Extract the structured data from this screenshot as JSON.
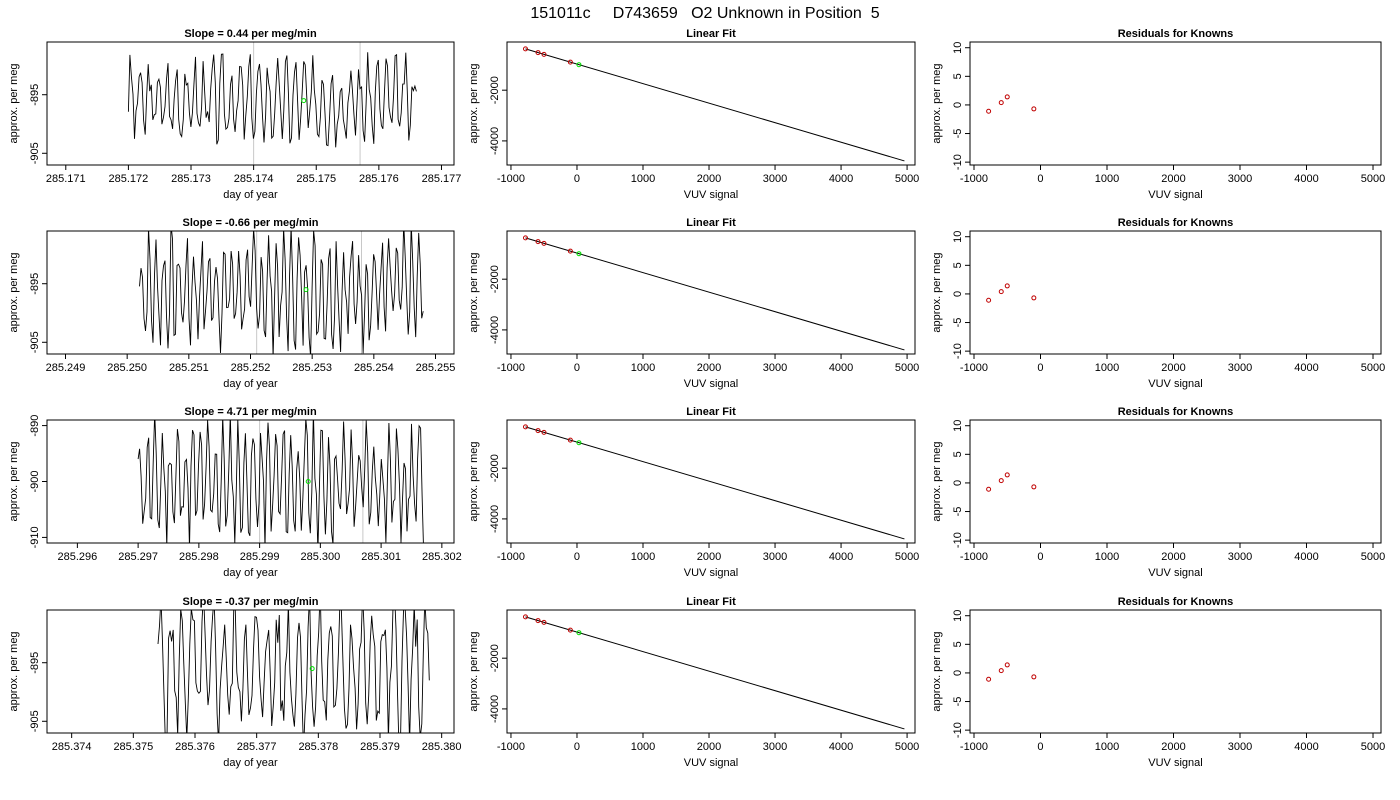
{
  "page_title": "151011c     D743659   O2 Unknown in Position  5",
  "colors": {
    "known": "#c00000",
    "unknown": "#00e000",
    "trace": "#000000",
    "marker_line": "#c8c8c8"
  },
  "chart_data": [
    {
      "type": "line",
      "row": 0,
      "col": 0,
      "title": "Slope =  0.44  per meg/min",
      "xlabel": "day of year",
      "ylabel": "approx. per meg",
      "xlim": [
        285.1707,
        285.1772
      ],
      "ylim": [
        -907,
        -886
      ],
      "xticks": [
        "285.171",
        "285.172",
        "285.173",
        "285.174",
        "285.175",
        "285.176",
        "285.177"
      ],
      "yticks": [
        "-895",
        "-905"
      ],
      "trace": {
        "x_start": 285.172,
        "x_end": 285.1766,
        "n": 190,
        "center": -896,
        "amplitude": 7.5,
        "period": 6,
        "seed": 3
      },
      "vlines": [
        285.174,
        285.1757
      ],
      "unknown_point": {
        "x": 285.1748,
        "y": -896
      }
    },
    {
      "type": "scatter",
      "row": 0,
      "col": 1,
      "title": "Linear Fit",
      "xlabel": "VUV signal",
      "ylabel": "approx. per meg",
      "xlim": [
        -1060,
        5120
      ],
      "ylim": [
        -4950,
        -100
      ],
      "xticks": [
        "-1000",
        "0",
        "1000",
        "2000",
        "3000",
        "4000",
        "5000"
      ],
      "yticks": [
        "-2000",
        "-4000"
      ],
      "line": {
        "x": [
          -780,
          4960
        ],
        "y": [
          -370,
          -4790
        ]
      },
      "known_points": {
        "x": [
          -780,
          -590,
          -500,
          -100
        ],
        "y": [
          -370,
          -517,
          -587,
          -895
        ]
      },
      "unknown_point": {
        "x": 30,
        "y": -995
      }
    },
    {
      "type": "scatter",
      "row": 0,
      "col": 2,
      "title": "Residuals for Knowns",
      "xlabel": "VUV signal",
      "ylabel": "approx. per meg",
      "xlim": [
        -1060,
        5120
      ],
      "ylim": [
        -10.5,
        11
      ],
      "xticks": [
        "-1000",
        "0",
        "1000",
        "2000",
        "3000",
        "4000",
        "5000"
      ],
      "yticks": [
        "-10",
        "-5",
        "0",
        "5",
        "10"
      ],
      "known_points": {
        "x": [
          -780,
          -590,
          -500,
          -100
        ],
        "y": [
          -1.1,
          0.4,
          1.4,
          -0.7
        ]
      }
    },
    {
      "type": "line",
      "row": 1,
      "col": 0,
      "title": "Slope =  -0.66  per meg/min",
      "xlabel": "day of year",
      "ylabel": "approx. per meg",
      "xlim": [
        285.2487,
        285.2553
      ],
      "ylim": [
        -907,
        -886
      ],
      "xticks": [
        "285.249",
        "285.250",
        "285.251",
        "285.252",
        "285.253",
        "285.254",
        "285.255"
      ],
      "yticks": [
        "-895",
        "-905"
      ],
      "trace": {
        "x_start": 285.2502,
        "x_end": 285.2548,
        "n": 190,
        "center": -896,
        "amplitude": 10,
        "period": 5,
        "seed": 7
      },
      "vlines": [
        285.2521,
        285.2538
      ],
      "unknown_point": {
        "x": 285.2529,
        "y": -896
      }
    },
    {
      "type": "scatter",
      "row": 1,
      "col": 1,
      "title": "Linear Fit",
      "xlabel": "VUV signal",
      "ylabel": "approx. per meg",
      "xlim": [
        -1060,
        5120
      ],
      "ylim": [
        -4950,
        -100
      ],
      "xticks": [
        "-1000",
        "0",
        "1000",
        "2000",
        "3000",
        "4000",
        "5000"
      ],
      "yticks": [
        "-2000",
        "-4000"
      ],
      "line": {
        "x": [
          -780,
          4960
        ],
        "y": [
          -370,
          -4790
        ]
      },
      "known_points": {
        "x": [
          -780,
          -590,
          -500,
          -100
        ],
        "y": [
          -370,
          -517,
          -587,
          -895
        ]
      },
      "unknown_point": {
        "x": 30,
        "y": -995
      }
    },
    {
      "type": "scatter",
      "row": 1,
      "col": 2,
      "title": "Residuals for Knowns",
      "xlabel": "VUV signal",
      "ylabel": "approx. per meg",
      "xlim": [
        -1060,
        5120
      ],
      "ylim": [
        -10.5,
        11
      ],
      "xticks": [
        "-1000",
        "0",
        "1000",
        "2000",
        "3000",
        "4000",
        "5000"
      ],
      "yticks": [
        "-10",
        "-5",
        "0",
        "5",
        "10"
      ],
      "known_points": {
        "x": [
          -780,
          -590,
          -500,
          -100
        ],
        "y": [
          -1.1,
          0.4,
          1.4,
          -0.7
        ]
      }
    },
    {
      "type": "line",
      "row": 2,
      "col": 0,
      "title": "Slope =  4.71  per meg/min",
      "xlabel": "day of year",
      "ylabel": "approx. per meg",
      "xlim": [
        285.2955,
        285.3022
      ],
      "ylim": [
        -911,
        -889
      ],
      "xticks": [
        "285.296",
        "285.297",
        "285.298",
        "285.299",
        "285.300",
        "285.301",
        "285.302"
      ],
      "yticks": [
        "-890",
        "-900",
        "-910"
      ],
      "trace": {
        "x_start": 285.297,
        "x_end": 285.3017,
        "n": 190,
        "center": -900,
        "amplitude": 11,
        "period": 5,
        "seed": 11
      },
      "vlines": [
        285.299,
        285.3007
      ],
      "unknown_point": {
        "x": 285.2998,
        "y": -900
      }
    },
    {
      "type": "scatter",
      "row": 2,
      "col": 1,
      "title": "Linear Fit",
      "xlabel": "VUV signal",
      "ylabel": "approx. per meg",
      "xlim": [
        -1060,
        5120
      ],
      "ylim": [
        -4950,
        -100
      ],
      "xticks": [
        "-1000",
        "0",
        "1000",
        "2000",
        "3000",
        "4000",
        "5000"
      ],
      "yticks": [
        "-2000",
        "-4000"
      ],
      "line": {
        "x": [
          -780,
          4960
        ],
        "y": [
          -370,
          -4790
        ]
      },
      "known_points": {
        "x": [
          -780,
          -590,
          -500,
          -100
        ],
        "y": [
          -370,
          -517,
          -587,
          -895
        ]
      },
      "unknown_point": {
        "x": 30,
        "y": -995
      }
    },
    {
      "type": "scatter",
      "row": 2,
      "col": 2,
      "title": "Residuals for Knowns",
      "xlabel": "VUV signal",
      "ylabel": "approx. per meg",
      "xlim": [
        -1060,
        5120
      ],
      "ylim": [
        -10.5,
        11
      ],
      "xticks": [
        "-1000",
        "0",
        "1000",
        "2000",
        "3000",
        "4000",
        "5000"
      ],
      "yticks": [
        "-10",
        "-5",
        "0",
        "5",
        "10"
      ],
      "known_points": {
        "x": [
          -780,
          -590,
          -500,
          -100
        ],
        "y": [
          -1.1,
          0.4,
          1.4,
          -0.7
        ]
      }
    },
    {
      "type": "line",
      "row": 3,
      "col": 0,
      "title": "Slope =  -0.37  per meg/min",
      "xlabel": "day of year",
      "ylabel": "approx. per meg",
      "xlim": [
        285.3736,
        285.3802
      ],
      "ylim": [
        -907,
        -886
      ],
      "xticks": [
        "285.374",
        "285.375",
        "285.376",
        "285.377",
        "285.378",
        "285.379",
        "285.380"
      ],
      "yticks": [
        "-895",
        "-905"
      ],
      "trace": {
        "x_start": 285.3754,
        "x_end": 285.3798,
        "n": 180,
        "center": -896,
        "amplitude": 12,
        "period": 7,
        "seed": 5
      },
      "vlines": [],
      "unknown_point": {
        "x": 285.3779,
        "y": -896
      }
    },
    {
      "type": "scatter",
      "row": 3,
      "col": 1,
      "title": "Linear Fit",
      "xlabel": "VUV signal",
      "ylabel": "approx. per meg",
      "xlim": [
        -1060,
        5120
      ],
      "ylim": [
        -4950,
        -100
      ],
      "xticks": [
        "-1000",
        "0",
        "1000",
        "2000",
        "3000",
        "4000",
        "5000"
      ],
      "yticks": [
        "-2000",
        "-4000"
      ],
      "line": {
        "x": [
          -780,
          4960
        ],
        "y": [
          -370,
          -4790
        ]
      },
      "known_points": {
        "x": [
          -780,
          -590,
          -500,
          -100
        ],
        "y": [
          -370,
          -517,
          -587,
          -895
        ]
      },
      "unknown_point": {
        "x": 30,
        "y": -995
      }
    },
    {
      "type": "scatter",
      "row": 3,
      "col": 2,
      "title": "Residuals for Knowns",
      "xlabel": "VUV signal",
      "ylabel": "approx. per meg",
      "xlim": [
        -1060,
        5120
      ],
      "ylim": [
        -10.5,
        11
      ],
      "xticks": [
        "-1000",
        "0",
        "1000",
        "2000",
        "3000",
        "4000",
        "5000"
      ],
      "yticks": [
        "-10",
        "-5",
        "0",
        "5",
        "10"
      ],
      "known_points": {
        "x": [
          -780,
          -590,
          -500,
          -100
        ],
        "y": [
          -1.1,
          0.4,
          1.4,
          -0.7
        ]
      }
    }
  ]
}
